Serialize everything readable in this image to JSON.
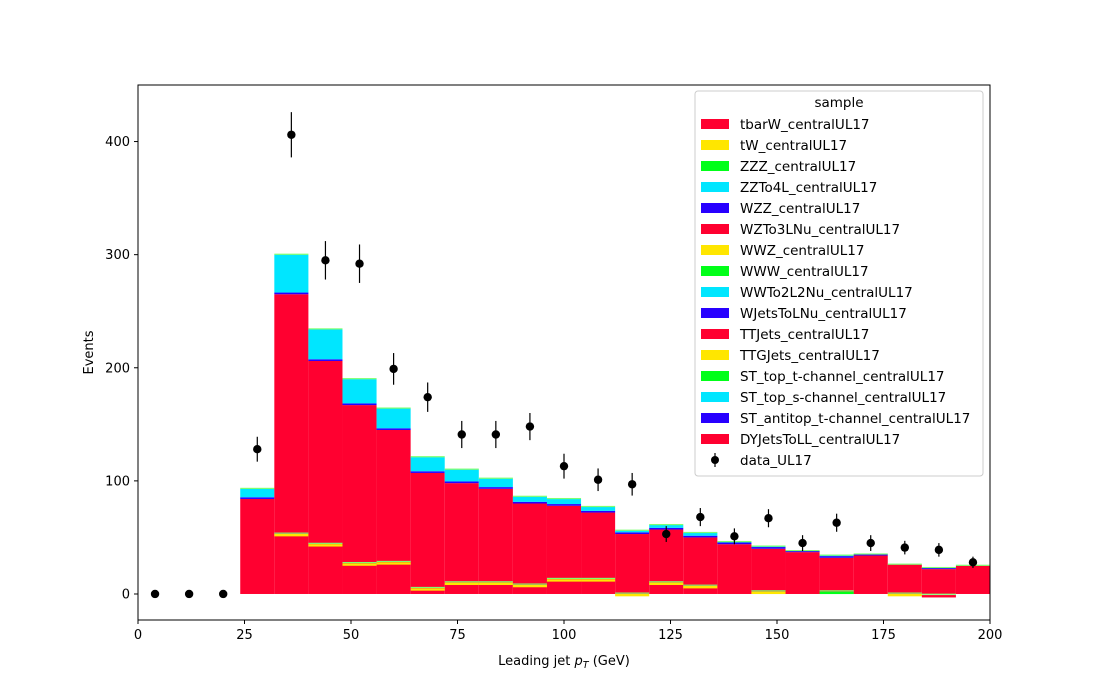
{
  "chart_data": {
    "type": "bar",
    "stacked_histogram": true,
    "xlabel_main": "Leading jet  ",
    "xlabel_sym": "p",
    "xlabel_sub": "T",
    "xlabel_unit": " (GeV)",
    "ylabel": "Events",
    "xlim": [
      0,
      200
    ],
    "ylim": [
      -23,
      450
    ],
    "xticks": [
      0,
      25,
      50,
      75,
      100,
      125,
      150,
      175,
      200
    ],
    "yticks": [
      0,
      100,
      200,
      300,
      400
    ],
    "bin_edges": [
      24,
      32,
      40,
      48,
      56,
      64,
      72,
      80,
      88,
      96,
      104,
      112,
      120,
      128,
      136,
      144,
      152,
      160,
      168,
      176,
      184,
      192,
      200
    ],
    "stack_components": [
      {
        "name": "DYJetsToLL_centralUL17",
        "color": "#ff0030"
      },
      {
        "name": "ST_antitop_t-channel_centralUL17",
        "color": "#2800ff"
      },
      {
        "name": "ST_top_s-channel_centralUL17",
        "color": "#00e6ff"
      }
    ],
    "dy_values": [
      84,
      265,
      206,
      167,
      145,
      107,
      98,
      93,
      80,
      78,
      72,
      53,
      57,
      50,
      44,
      40,
      37,
      32,
      34,
      26,
      22,
      25
    ],
    "stack_totals": [
      93,
      300,
      234,
      190,
      164,
      121,
      110,
      102,
      86,
      84,
      77,
      56,
      61,
      54,
      46,
      42,
      38,
      34,
      35,
      26,
      23,
      25
    ],
    "minor_lines": [
      {
        "bin": 1,
        "y": 52,
        "color": "#ffe600"
      },
      {
        "bin": 2,
        "y": 43,
        "color": "#ffe600"
      },
      {
        "bin": 3,
        "y": 26,
        "color": "#ffe600"
      },
      {
        "bin": 4,
        "y": 27,
        "color": "#ffe600"
      },
      {
        "bin": 5,
        "y": 4,
        "color": "#ffe600"
      },
      {
        "bin": 6,
        "y": 9,
        "color": "#ffe600"
      },
      {
        "bin": 7,
        "y": 9,
        "color": "#ffe600"
      },
      {
        "bin": 8,
        "y": 7,
        "color": "#ffe600"
      },
      {
        "bin": 9,
        "y": 12,
        "color": "#ffe600"
      },
      {
        "bin": 10,
        "y": 12,
        "color": "#ffe600"
      },
      {
        "bin": 11,
        "y": -1,
        "color": "#ffe600"
      },
      {
        "bin": 12,
        "y": 9,
        "color": "#ffe600"
      },
      {
        "bin": 13,
        "y": 6,
        "color": "#ffe600"
      },
      {
        "bin": 15,
        "y": 1,
        "color": "#ffe600"
      },
      {
        "bin": 17,
        "y": 1,
        "color": "#00ff18"
      },
      {
        "bin": 19,
        "y": -1,
        "color": "#ffe600"
      },
      {
        "bin": 20,
        "y": -2,
        "color": "#ff0030"
      }
    ],
    "data": {
      "name": "data_UL17",
      "x": [
        4,
        12,
        20,
        28,
        36,
        44,
        52,
        60,
        68,
        76,
        84,
        92,
        100,
        108,
        116,
        124,
        132,
        140,
        148,
        156,
        164,
        172,
        180,
        188,
        196
      ],
      "y": [
        0,
        0,
        0,
        128,
        406,
        295,
        292,
        199,
        174,
        141,
        141,
        148,
        113,
        101,
        97,
        53,
        68,
        51,
        67,
        45,
        63,
        45,
        41,
        39,
        28
      ],
      "err": [
        0,
        0,
        0,
        11,
        20,
        17,
        17,
        14,
        13,
        12,
        12,
        12,
        11,
        10,
        10,
        7,
        8,
        7,
        8,
        7,
        8,
        7,
        6,
        6,
        5
      ]
    },
    "legend": {
      "title": "sample",
      "placement": "top-right",
      "entries": [
        {
          "name": "tbarW_centralUL17",
          "color": "#ff0030"
        },
        {
          "name": "tW_centralUL17",
          "color": "#ffe600"
        },
        {
          "name": "ZZZ_centralUL17",
          "color": "#00ff18"
        },
        {
          "name": "ZZTo4L_centralUL17",
          "color": "#00e6ff"
        },
        {
          "name": "WZZ_centralUL17",
          "color": "#2800ff"
        },
        {
          "name": "WZTo3LNu_centralUL17",
          "color": "#ff0030"
        },
        {
          "name": "WWZ_centralUL17",
          "color": "#ffe600"
        },
        {
          "name": "WWW_centralUL17",
          "color": "#00ff18"
        },
        {
          "name": "WWTo2L2Nu_centralUL17",
          "color": "#00e6ff"
        },
        {
          "name": "WJetsToLNu_centralUL17",
          "color": "#2800ff"
        },
        {
          "name": "TTJets_centralUL17",
          "color": "#ff0030"
        },
        {
          "name": "TTGJets_centralUL17",
          "color": "#ffe600"
        },
        {
          "name": "ST_top_t-channel_centralUL17",
          "color": "#00ff18"
        },
        {
          "name": "ST_top_s-channel_centralUL17",
          "color": "#00e6ff"
        },
        {
          "name": "ST_antitop_t-channel_centralUL17",
          "color": "#2800ff"
        },
        {
          "name": "DYJetsToLL_centralUL17",
          "color": "#ff0030"
        },
        {
          "name": "data_UL17",
          "color": "#000000",
          "marker": "errorbar"
        }
      ]
    }
  }
}
